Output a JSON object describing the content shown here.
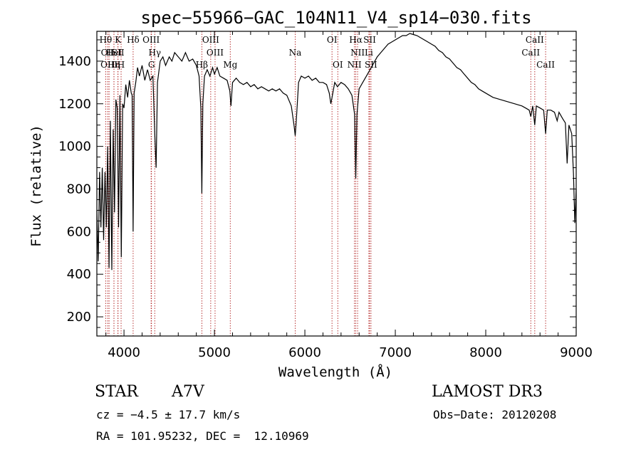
{
  "chart_data": {
    "type": "line",
    "title": "spec−55966−GAC_104N11_V4_sp14−030.fits",
    "xlabel": "Wavelength (Å)",
    "ylabel": "Flux (relative)",
    "xlim": [
      3700,
      9000
    ],
    "ylim": [
      110,
      1540
    ],
    "xticks": [
      4000,
      5000,
      6000,
      7000,
      8000,
      9000
    ],
    "yticks": [
      200,
      400,
      600,
      800,
      1000,
      1200,
      1400
    ],
    "series": [
      {
        "name": "spectrum",
        "color": "#000000",
        "points": [
          [
            3700,
            700
          ],
          [
            3715,
            460
          ],
          [
            3730,
            880
          ],
          [
            3745,
            620
          ],
          [
            3760,
            900
          ],
          [
            3775,
            560
          ],
          [
            3790,
            880
          ],
          [
            3805,
            620
          ],
          [
            3820,
            1000
          ],
          [
            3835,
            430
          ],
          [
            3850,
            1120
          ],
          [
            3865,
            420
          ],
          [
            3880,
            1080
          ],
          [
            3895,
            690
          ],
          [
            3910,
            1220
          ],
          [
            3925,
            1180
          ],
          [
            3940,
            620
          ],
          [
            3955,
            1240
          ],
          [
            3970,
            480
          ],
          [
            3985,
            1200
          ],
          [
            4000,
            1180
          ],
          [
            4020,
            1290
          ],
          [
            4040,
            1230
          ],
          [
            4060,
            1310
          ],
          [
            4080,
            1250
          ],
          [
            4090,
            1240
          ],
          [
            4101,
            600
          ],
          [
            4112,
            1250
          ],
          [
            4130,
            1300
          ],
          [
            4150,
            1370
          ],
          [
            4170,
            1330
          ],
          [
            4200,
            1380
          ],
          [
            4230,
            1310
          ],
          [
            4260,
            1360
          ],
          [
            4290,
            1310
          ],
          [
            4320,
            1330
          ],
          [
            4340,
            1060
          ],
          [
            4355,
            900
          ],
          [
            4370,
            1300
          ],
          [
            4400,
            1400
          ],
          [
            4430,
            1420
          ],
          [
            4460,
            1380
          ],
          [
            4500,
            1420
          ],
          [
            4530,
            1400
          ],
          [
            4560,
            1440
          ],
          [
            4600,
            1420
          ],
          [
            4640,
            1400
          ],
          [
            4680,
            1440
          ],
          [
            4720,
            1400
          ],
          [
            4760,
            1410
          ],
          [
            4800,
            1380
          ],
          [
            4830,
            1330
          ],
          [
            4850,
            1180
          ],
          [
            4861,
            780
          ],
          [
            4872,
            1200
          ],
          [
            4890,
            1330
          ],
          [
            4920,
            1360
          ],
          [
            4950,
            1330
          ],
          [
            4980,
            1370
          ],
          [
            5000,
            1340
          ],
          [
            5030,
            1370
          ],
          [
            5060,
            1330
          ],
          [
            5100,
            1320
          ],
          [
            5140,
            1310
          ],
          [
            5170,
            1260
          ],
          [
            5183,
            1190
          ],
          [
            5200,
            1300
          ],
          [
            5240,
            1320
          ],
          [
            5280,
            1300
          ],
          [
            5320,
            1290
          ],
          [
            5360,
            1300
          ],
          [
            5400,
            1280
          ],
          [
            5440,
            1290
          ],
          [
            5480,
            1270
          ],
          [
            5520,
            1280
          ],
          [
            5560,
            1270
          ],
          [
            5600,
            1260
          ],
          [
            5640,
            1270
          ],
          [
            5680,
            1260
          ],
          [
            5720,
            1270
          ],
          [
            5760,
            1250
          ],
          [
            5800,
            1240
          ],
          [
            5850,
            1190
          ],
          [
            5880,
            1100
          ],
          [
            5893,
            1050
          ],
          [
            5905,
            1120
          ],
          [
            5930,
            1300
          ],
          [
            5960,
            1330
          ],
          [
            6000,
            1320
          ],
          [
            6040,
            1330
          ],
          [
            6080,
            1310
          ],
          [
            6120,
            1320
          ],
          [
            6160,
            1300
          ],
          [
            6200,
            1300
          ],
          [
            6240,
            1290
          ],
          [
            6270,
            1250
          ],
          [
            6287,
            1200
          ],
          [
            6300,
            1230
          ],
          [
            6330,
            1300
          ],
          [
            6360,
            1280
          ],
          [
            6400,
            1300
          ],
          [
            6440,
            1290
          ],
          [
            6480,
            1270
          ],
          [
            6520,
            1240
          ],
          [
            6550,
            1150
          ],
          [
            6563,
            850
          ],
          [
            6576,
            1150
          ],
          [
            6600,
            1270
          ],
          [
            6640,
            1300
          ],
          [
            6680,
            1330
          ],
          [
            6720,
            1360
          ],
          [
            6760,
            1390
          ],
          [
            6800,
            1420
          ],
          [
            6840,
            1440
          ],
          [
            6880,
            1460
          ],
          [
            6920,
            1480
          ],
          [
            6960,
            1490
          ],
          [
            7000,
            1500
          ],
          [
            7040,
            1510
          ],
          [
            7080,
            1520
          ],
          [
            7120,
            1520
          ],
          [
            7160,
            1530
          ],
          [
            7200,
            1525
          ],
          [
            7240,
            1520
          ],
          [
            7280,
            1510
          ],
          [
            7320,
            1500
          ],
          [
            7360,
            1490
          ],
          [
            7400,
            1480
          ],
          [
            7440,
            1470
          ],
          [
            7480,
            1450
          ],
          [
            7520,
            1440
          ],
          [
            7560,
            1420
          ],
          [
            7600,
            1410
          ],
          [
            7640,
            1390
          ],
          [
            7680,
            1370
          ],
          [
            7720,
            1360
          ],
          [
            7760,
            1340
          ],
          [
            7800,
            1320
          ],
          [
            7840,
            1300
          ],
          [
            7880,
            1290
          ],
          [
            7920,
            1270
          ],
          [
            7960,
            1260
          ],
          [
            8000,
            1250
          ],
          [
            8040,
            1240
          ],
          [
            8080,
            1230
          ],
          [
            8120,
            1225
          ],
          [
            8160,
            1220
          ],
          [
            8200,
            1215
          ],
          [
            8240,
            1210
          ],
          [
            8280,
            1205
          ],
          [
            8320,
            1200
          ],
          [
            8360,
            1195
          ],
          [
            8400,
            1190
          ],
          [
            8440,
            1180
          ],
          [
            8480,
            1170
          ],
          [
            8498,
            1140
          ],
          [
            8520,
            1190
          ],
          [
            8542,
            1100
          ],
          [
            8560,
            1190
          ],
          [
            8600,
            1180
          ],
          [
            8640,
            1170
          ],
          [
            8662,
            1060
          ],
          [
            8680,
            1170
          ],
          [
            8720,
            1170
          ],
          [
            8760,
            1160
          ],
          [
            8790,
            1120
          ],
          [
            8810,
            1160
          ],
          [
            8850,
            1130
          ],
          [
            8880,
            1110
          ],
          [
            8900,
            920
          ],
          [
            8920,
            1100
          ],
          [
            8950,
            1060
          ],
          [
            8970,
            870
          ],
          [
            8985,
            640
          ],
          [
            9000,
            800
          ]
        ]
      }
    ],
    "lines": [
      {
        "wavelength": 3798,
        "label": "Hθ",
        "row": 1
      },
      {
        "wavelength": 3820,
        "label": "OII",
        "row": 2
      },
      {
        "wavelength": 3835,
        "label": "OIII",
        "row": 3
      },
      {
        "wavelength": 3889,
        "label": "HeI",
        "row": 2
      },
      {
        "wavelength": 3933,
        "label": "K",
        "row": 1
      },
      {
        "wavelength": 3934,
        "label": "SII",
        "row": 2
      },
      {
        "wavelength": 3889,
        "label": "Hη",
        "row": 3
      },
      {
        "wavelength": 3968,
        "label": "H",
        "row": 3
      },
      {
        "wavelength": 4101,
        "label": "Hδ",
        "row": 1
      },
      {
        "wavelength": 4300,
        "label": "OIII",
        "row": 1
      },
      {
        "wavelength": 4340,
        "label": "Hγ",
        "row": 2
      },
      {
        "wavelength": 4304,
        "label": "G",
        "row": 3
      },
      {
        "wavelength": 4959,
        "label": "OIII",
        "row": 1
      },
      {
        "wavelength": 5007,
        "label": "OIII",
        "row": 2
      },
      {
        "wavelength": 4861,
        "label": "Hβ",
        "row": 3
      },
      {
        "wavelength": 5175,
        "label": "Mg",
        "row": 3
      },
      {
        "wavelength": 5893,
        "label": "Na",
        "row": 2
      },
      {
        "wavelength": 6300,
        "label": "OI",
        "row": 1
      },
      {
        "wavelength": 6364,
        "label": "OI",
        "row": 3
      },
      {
        "wavelength": 6563,
        "label": "Hα",
        "row": 1
      },
      {
        "wavelength": 6583,
        "label": "NII",
        "row": 2
      },
      {
        "wavelength": 6548,
        "label": "NII",
        "row": 3
      },
      {
        "wavelength": 6716,
        "label": "SII",
        "row": 1
      },
      {
        "wavelength": 6708,
        "label": "Li",
        "row": 2
      },
      {
        "wavelength": 6731,
        "label": "SII",
        "row": 3
      },
      {
        "wavelength": 8542,
        "label": "CaII",
        "row": 1
      },
      {
        "wavelength": 8498,
        "label": "CaII",
        "row": 2
      },
      {
        "wavelength": 8662,
        "label": "CaII",
        "row": 3
      }
    ]
  },
  "info": {
    "object_class": "STAR",
    "subclass": "A7V",
    "survey": "LAMOST DR3",
    "cz": "cz = −4.5 ± 17.7 km/s",
    "obs_date": "Obs−Date: 20120208",
    "coords": "RA = 101.95232, DEC =  12.10969"
  }
}
